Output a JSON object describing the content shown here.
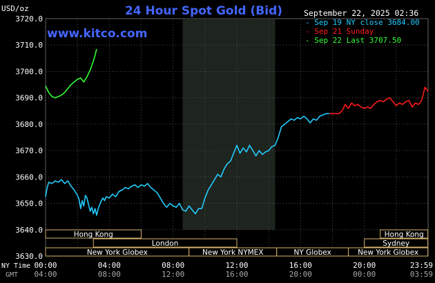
{
  "header": {
    "unit": "USD/oz",
    "title": "24 Hour Spot Gold (Bid)",
    "brand": "www.kitco.com",
    "timestamp": "September 22, 2025 02:36"
  },
  "legend": [
    {
      "label": "Sep 19 NY close 3684.00",
      "color": "#22ccff"
    },
    {
      "label": "Sep 21 Sunday",
      "color": "#ff1a1a"
    },
    {
      "label": "Sep 22 Last 3707.50",
      "color": "#33ff33"
    }
  ],
  "colors": {
    "background": "#000000",
    "plot_bg": "#000000",
    "grid": "#505050",
    "title": "#4466ff",
    "brand": "#4466ff",
    "text": "#ffffff",
    "shade": "#1e241e",
    "market_bar_bg": "#000000",
    "market_bar_border": "#d9b36c",
    "market_text": "#ffffff"
  },
  "markets": {
    "row1": [
      {
        "label": "Hong Kong",
        "start": "00:00",
        "end": "06:00"
      },
      {
        "label": "Hong Kong",
        "start": "21:00",
        "end": "23:59"
      }
    ],
    "row2": [
      {
        "label": "London",
        "start": "03:00",
        "end": "12:00"
      },
      {
        "label": "Sydney",
        "start": "20:00",
        "end": "23:59"
      }
    ],
    "row3": [
      {
        "label": "New York Globex",
        "start": "00:00",
        "end": "09:00"
      },
      {
        "label": "New York NYMEX",
        "start": "09:00",
        "end": "14:30"
      },
      {
        "label": "NY Globex",
        "start": "14:30",
        "end": "19:00"
      },
      {
        "label": "New York Globex",
        "start": "19:00",
        "end": "23:59"
      }
    ],
    "row1_prefix": "",
    "row2_prefix": "",
    "row3_prefix": ""
  },
  "time_rows": {
    "ny_label": "NY Time",
    "gmt_label": "GMT",
    "ny": [
      "00:00",
      "04:00",
      "08:00",
      "12:00",
      "16:00",
      "20:00",
      "23:59"
    ],
    "gmt": [
      "04:00",
      "08:00",
      "12:00",
      "16:00",
      "20:00",
      "00:00",
      "03:59"
    ]
  },
  "chart_data": {
    "type": "line",
    "x_unit": "hours (NY time)",
    "xlim": [
      0,
      24
    ],
    "ylim": [
      3630,
      3720
    ],
    "yticks": [
      "3630.0",
      "3640.0",
      "3650.0",
      "3660.0",
      "3670.0",
      "3680.0",
      "3690.0",
      "3700.0",
      "3710.0",
      "3720.0"
    ],
    "ytick_values": [
      3630,
      3640,
      3650,
      3660,
      3670,
      3680,
      3690,
      3700,
      3710,
      3720
    ],
    "xticks": [
      0,
      4,
      8,
      12,
      16,
      20,
      23.98
    ],
    "nymex_shade": [
      8.6,
      14.4
    ],
    "grid": true,
    "series": [
      {
        "name": "Sep 19 NY close 3684.00",
        "color": "#22ccff",
        "points": [
          [
            0,
            3652.5
          ],
          [
            0.1,
            3656
          ],
          [
            0.2,
            3658
          ],
          [
            0.4,
            3657.5
          ],
          [
            0.6,
            3658.5
          ],
          [
            0.8,
            3658
          ],
          [
            1.0,
            3659
          ],
          [
            1.2,
            3657.5
          ],
          [
            1.4,
            3658.5
          ],
          [
            1.6,
            3656.5
          ],
          [
            1.8,
            3655
          ],
          [
            2.0,
            3653
          ],
          [
            2.1,
            3651.5
          ],
          [
            2.2,
            3648
          ],
          [
            2.3,
            3651
          ],
          [
            2.4,
            3649
          ],
          [
            2.5,
            3653
          ],
          [
            2.6,
            3652
          ],
          [
            2.7,
            3649.5
          ],
          [
            2.8,
            3647
          ],
          [
            2.9,
            3648.5
          ],
          [
            3.0,
            3646
          ],
          [
            3.1,
            3648
          ],
          [
            3.2,
            3645.5
          ],
          [
            3.3,
            3648
          ],
          [
            3.4,
            3649.5
          ],
          [
            3.5,
            3651
          ],
          [
            3.6,
            3652
          ],
          [
            3.7,
            3651
          ],
          [
            3.8,
            3652.5
          ],
          [
            4.0,
            3652
          ],
          [
            4.2,
            3653.5
          ],
          [
            4.4,
            3652.5
          ],
          [
            4.6,
            3654.5
          ],
          [
            4.8,
            3655
          ],
          [
            5.0,
            3656
          ],
          [
            5.2,
            3655.5
          ],
          [
            5.4,
            3656.5
          ],
          [
            5.6,
            3657
          ],
          [
            5.8,
            3656
          ],
          [
            6.0,
            3657
          ],
          [
            6.2,
            3656.5
          ],
          [
            6.4,
            3657.5
          ],
          [
            6.6,
            3656
          ],
          [
            6.8,
            3655
          ],
          [
            7.0,
            3654
          ],
          [
            7.2,
            3652
          ],
          [
            7.4,
            3650
          ],
          [
            7.6,
            3648.5
          ],
          [
            7.8,
            3650
          ],
          [
            8.0,
            3649
          ],
          [
            8.2,
            3648.5
          ],
          [
            8.4,
            3650
          ],
          [
            8.6,
            3647.5
          ],
          [
            8.8,
            3647
          ],
          [
            9.0,
            3649
          ],
          [
            9.2,
            3647.5
          ],
          [
            9.4,
            3646
          ],
          [
            9.6,
            3648
          ],
          [
            9.8,
            3648
          ],
          [
            10.0,
            3652
          ],
          [
            10.2,
            3655
          ],
          [
            10.4,
            3657
          ],
          [
            10.6,
            3659
          ],
          [
            10.8,
            3661
          ],
          [
            11.0,
            3660
          ],
          [
            11.2,
            3663
          ],
          [
            11.4,
            3665
          ],
          [
            11.6,
            3666
          ],
          [
            11.8,
            3669
          ],
          [
            12.0,
            3672
          ],
          [
            12.2,
            3669
          ],
          [
            12.4,
            3671
          ],
          [
            12.6,
            3669.5
          ],
          [
            12.8,
            3672
          ],
          [
            13.0,
            3670
          ],
          [
            13.2,
            3668
          ],
          [
            13.4,
            3670
          ],
          [
            13.6,
            3668.5
          ],
          [
            13.8,
            3669.5
          ],
          [
            14.0,
            3670
          ],
          [
            14.2,
            3671.5
          ],
          [
            14.4,
            3672
          ],
          [
            14.6,
            3675
          ],
          [
            14.8,
            3679
          ],
          [
            15.0,
            3680
          ],
          [
            15.2,
            3681
          ],
          [
            15.4,
            3682
          ],
          [
            15.6,
            3681.5
          ],
          [
            15.8,
            3682.5
          ],
          [
            16.0,
            3682
          ],
          [
            16.2,
            3683
          ],
          [
            16.4,
            3682
          ],
          [
            16.6,
            3680.5
          ],
          [
            16.8,
            3682
          ],
          [
            17.0,
            3681.5
          ],
          [
            17.2,
            3683
          ],
          [
            17.4,
            3683.5
          ],
          [
            17.6,
            3684
          ],
          [
            17.8,
            3684
          ]
        ]
      },
      {
        "name": "Sep 21 Sunday",
        "color": "#ff1a1a",
        "points": [
          [
            17.8,
            3684
          ],
          [
            18.0,
            3684
          ],
          [
            18.4,
            3684
          ],
          [
            18.6,
            3685
          ],
          [
            18.8,
            3687.5
          ],
          [
            19.0,
            3686
          ],
          [
            19.2,
            3688
          ],
          [
            19.4,
            3687
          ],
          [
            19.6,
            3687.5
          ],
          [
            19.8,
            3686.5
          ],
          [
            20.0,
            3686
          ],
          [
            20.2,
            3686.5
          ],
          [
            20.4,
            3686
          ],
          [
            20.6,
            3687.5
          ],
          [
            20.8,
            3688.5
          ],
          [
            21.0,
            3689
          ],
          [
            21.2,
            3688.5
          ],
          [
            21.4,
            3689.5
          ],
          [
            21.6,
            3690
          ],
          [
            21.8,
            3688.5
          ],
          [
            22.0,
            3687
          ],
          [
            22.2,
            3688
          ],
          [
            22.4,
            3687.5
          ],
          [
            22.6,
            3688.5
          ],
          [
            22.8,
            3689
          ],
          [
            23.0,
            3686.5
          ],
          [
            23.2,
            3688
          ],
          [
            23.4,
            3687.5
          ],
          [
            23.6,
            3689
          ],
          [
            23.8,
            3694
          ],
          [
            24.0,
            3692.5
          ]
        ]
      },
      {
        "name": "Sep 22 Last 3707.50",
        "color": "#33ff33",
        "points": [
          [
            0,
            3694.5
          ],
          [
            0.2,
            3692
          ],
          [
            0.4,
            3690.5
          ],
          [
            0.6,
            3690
          ],
          [
            0.8,
            3690.5
          ],
          [
            1.0,
            3691
          ],
          [
            1.2,
            3692
          ],
          [
            1.4,
            3693.5
          ],
          [
            1.6,
            3695
          ],
          [
            1.8,
            3696
          ],
          [
            2.0,
            3697
          ],
          [
            2.2,
            3697.5
          ],
          [
            2.4,
            3696
          ],
          [
            2.6,
            3698
          ],
          [
            2.8,
            3700.5
          ],
          [
            3.0,
            3704
          ],
          [
            3.1,
            3706
          ],
          [
            3.2,
            3708.5
          ]
        ]
      }
    ]
  }
}
